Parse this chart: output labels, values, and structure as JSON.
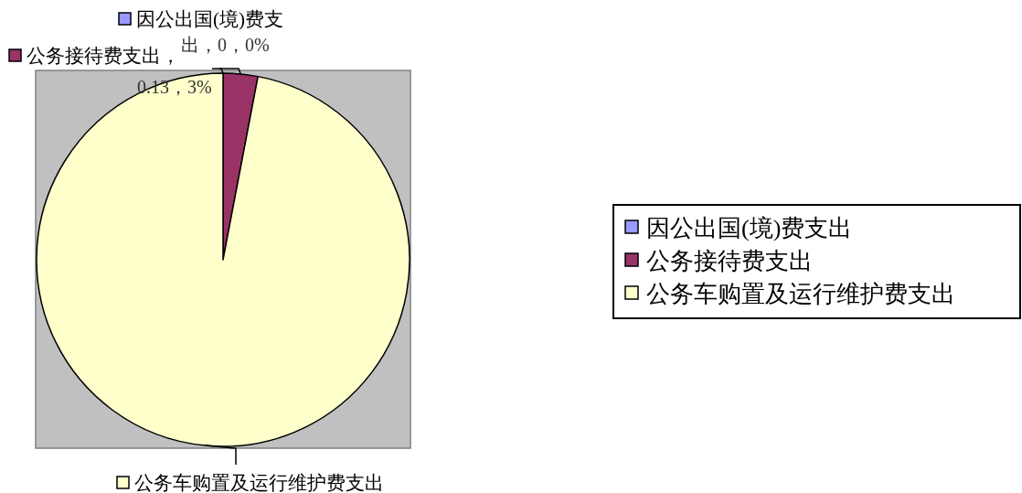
{
  "chart_data": {
    "type": "pie",
    "categories": [
      "因公出国(境)费支出",
      "公务接待费支出",
      "公务车购置及运行维护费支出"
    ],
    "values": [
      0,
      3,
      97
    ],
    "colors": [
      "#9999ff",
      "#993366",
      "#ffffcc"
    ],
    "value_labels": [
      "，0，0%",
      "，0.13，3%",
      null
    ],
    "legend": "right"
  }
}
